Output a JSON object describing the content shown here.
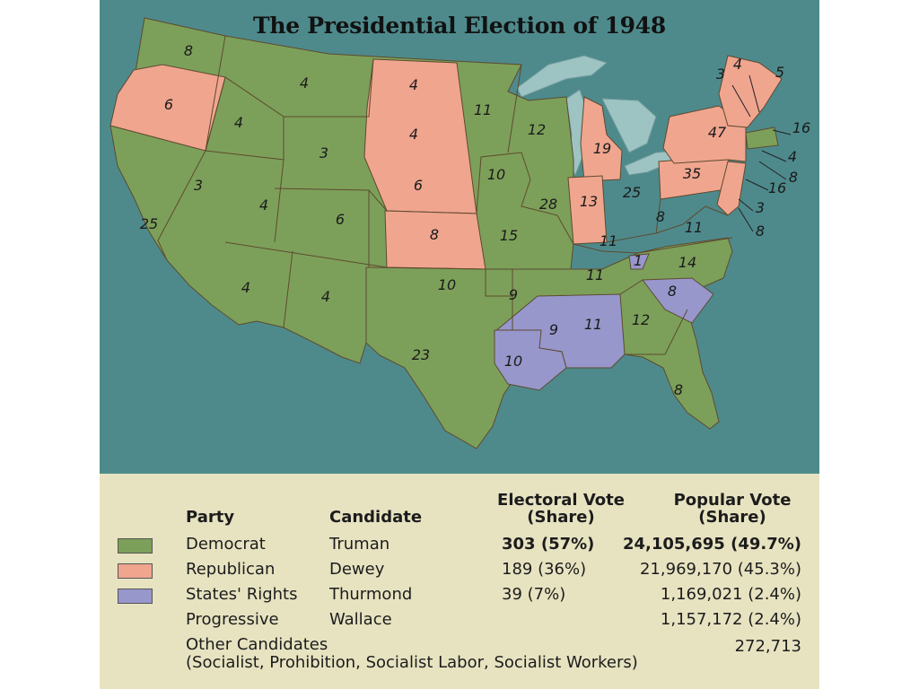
{
  "map": {
    "title": "The Presidential Election of 1948",
    "colors": {
      "democrat": "#7ca05a",
      "republican": "#f0a58f",
      "states_rights": "#9797cc",
      "water": "#4e8a8c",
      "lakes": "#9ec3c3"
    },
    "state_electoral_votes": {
      "WA": "8",
      "OR": "6",
      "CA": "25",
      "ID": "4",
      "NV": "3",
      "MT": "4",
      "WY": "3",
      "UT": "4",
      "AZ": "4",
      "CO": "6",
      "NM": "4",
      "ND": "4",
      "SD": "4",
      "NE": "6",
      "KS": "8",
      "OK": "10",
      "TX": "23",
      "MN": "11",
      "IA": "10",
      "MO": "15",
      "AR": "9",
      "LA": "10",
      "WI": "12",
      "IL": "28",
      "MI": "19",
      "IN": "13",
      "OH": "25",
      "KY": "11",
      "TN": "11",
      "MS": "9",
      "AL": "11",
      "GA": "12",
      "FL": "8",
      "SC": "8",
      "NC": "14",
      "VA": "11",
      "WV": "8",
      "TN_EAST": "1",
      "PA": "35",
      "NY": "47",
      "VT": "3",
      "NH": "4",
      "ME": "5",
      "MA": "16",
      "RI": "4",
      "CT": "8",
      "NJ": "16",
      "DE": "3",
      "MD": "8"
    }
  },
  "legend": {
    "headers": {
      "party": "Party",
      "candidate": "Candidate",
      "electoral_line1": "Electoral Vote",
      "electoral_line2": "(Share)",
      "popular_line1": "Popular Vote",
      "popular_line2": "(Share)"
    },
    "rows": [
      {
        "party": "Democrat",
        "candidate": "Truman",
        "electoral": "303 (57%)",
        "popular": "24,105,695 (49.7%)",
        "color": "#7ca05a"
      },
      {
        "party": "Republican",
        "candidate": "Dewey",
        "electoral": "189 (36%)",
        "popular": "21,969,170 (45.3%)",
        "color": "#f0a58f"
      },
      {
        "party": "States' Rights",
        "candidate": "Thurmond",
        "electoral": "39 (7%)",
        "popular": "1,169,021 (2.4%)",
        "color": "#9797cc"
      },
      {
        "party": "Progressive",
        "candidate": "Wallace",
        "electoral": "",
        "popular": "1,157,172 (2.4%)"
      }
    ],
    "other": {
      "label": "Other Candidates",
      "detail": "(Socialist, Prohibition, Socialist Labor, Socialist Workers)",
      "popular": "272,713"
    }
  }
}
